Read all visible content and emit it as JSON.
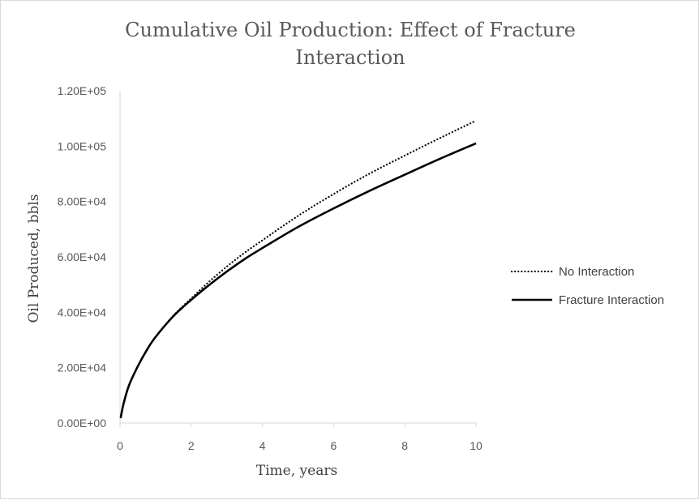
{
  "chart_data": {
    "type": "line",
    "title": "Cumulative Oil Production: Effect of Fracture Interaction",
    "title_lines": [
      "Cumulative Oil Production: Effect of Fracture",
      "Interaction"
    ],
    "xlabel": "Time, years",
    "ylabel": "Oil Produced, bbls",
    "xlim": [
      0,
      10
    ],
    "ylim": [
      0,
      120000
    ],
    "x_ticks": [
      0,
      2,
      4,
      6,
      8,
      10
    ],
    "x_tick_labels": [
      "0",
      "2",
      "4",
      "6",
      "8",
      "10"
    ],
    "y_ticks": [
      0,
      20000,
      40000,
      60000,
      80000,
      100000,
      120000
    ],
    "y_tick_labels": [
      "0.00E+00",
      "2.00E+04",
      "4.00E+04",
      "6.00E+04",
      "8.00E+04",
      "1.00E+05",
      "1.20E+05"
    ],
    "grid": false,
    "legend_position": "right",
    "series": [
      {
        "name": "No Interaction",
        "style": "dotted",
        "color": "#000000",
        "x": [
          0.02,
          0.1,
          0.25,
          0.5,
          0.75,
          1,
          1.5,
          2,
          2.5,
          3,
          3.5,
          4,
          5,
          6,
          7,
          8,
          9,
          10
        ],
        "y": [
          2000,
          7000,
          13500,
          20500,
          26300,
          31100,
          38800,
          45000,
          51000,
          56500,
          61500,
          66000,
          74800,
          82700,
          90000,
          96600,
          103000,
          109200
        ]
      },
      {
        "name": "Fracture Interaction",
        "style": "solid",
        "color": "#000000",
        "x": [
          0.02,
          0.1,
          0.25,
          0.5,
          0.75,
          1,
          1.5,
          2,
          2.5,
          3,
          3.5,
          4,
          5,
          6,
          7,
          8,
          9,
          10
        ],
        "y": [
          2000,
          7000,
          13500,
          20500,
          26300,
          31100,
          38600,
          44500,
          49800,
          54700,
          59200,
          63200,
          70800,
          77500,
          83800,
          89700,
          95500,
          101000
        ]
      }
    ]
  }
}
